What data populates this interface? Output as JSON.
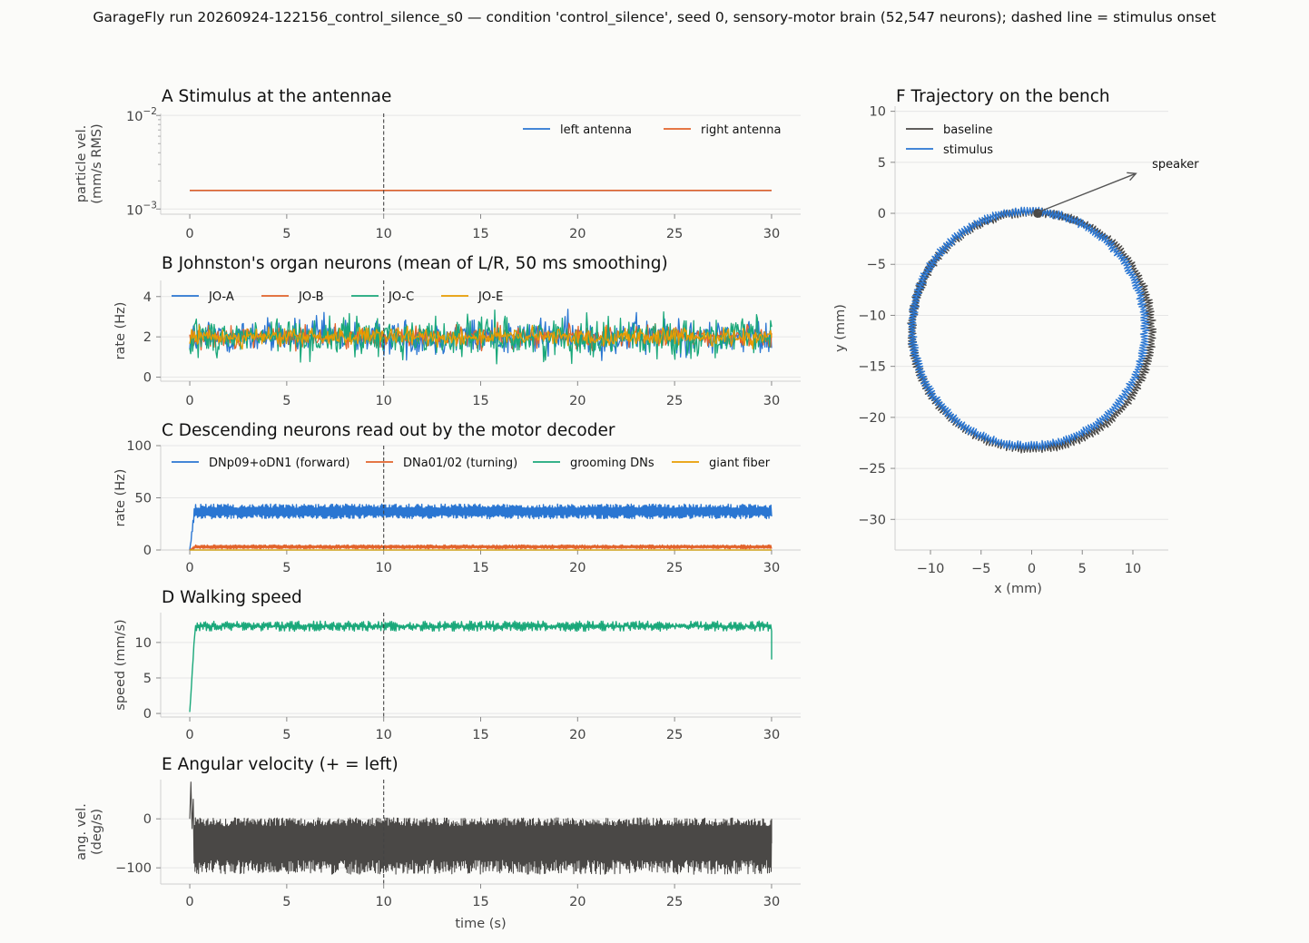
{
  "suptitle": "GarageFly run 20260924-122156_control_silence_s0 — condition 'control_silence', seed 0, sensory-motor brain (52,547 neurons); dashed line = stimulus onset",
  "colors": {
    "blue": "#2a76d2",
    "orange": "#e2632b",
    "green": "#1aa87a",
    "gold": "#e89c00",
    "dark": "#4a4846",
    "grid": "#e6e6e6",
    "axis": "#cfcfcf",
    "background": "#fbfbf9"
  },
  "chart_data": [
    {
      "id": "A",
      "type": "line",
      "title": "A  Stimulus at the antennae",
      "ylabel": [
        "particle vel.",
        "(mm/s RMS)"
      ],
      "xlabel": "",
      "yscale": "log",
      "ylim": [
        0.00088,
        0.0105
      ],
      "xlim": [
        -1.5,
        31.5
      ],
      "xticks": [
        0,
        5,
        10,
        15,
        20,
        25,
        30
      ],
      "yticks_log": [
        {
          "value": 0.001,
          "base": "10",
          "exp": "−3"
        },
        {
          "value": 0.01,
          "base": "10",
          "exp": "−2"
        }
      ],
      "stimulus_onset": 10,
      "legend_position": "top-right",
      "legend_layout": "row",
      "series": [
        {
          "name": "left antenna",
          "color": "#2a76d2",
          "x": [
            0,
            30
          ],
          "y": [
            0.00158,
            0.00158
          ]
        },
        {
          "name": "right antenna",
          "color": "#e2632b",
          "x": [
            0,
            30
          ],
          "y": [
            0.00158,
            0.00158
          ]
        }
      ]
    },
    {
      "id": "B",
      "type": "line",
      "title": "B  Johnston's organ neurons (mean of L/R, 50 ms smoothing)",
      "ylabel": [
        "rate (Hz)"
      ],
      "xlabel": "",
      "ylim": [
        -0.2,
        4.8
      ],
      "xlim": [
        -1.5,
        31.5
      ],
      "xticks": [
        0,
        5,
        10,
        15,
        20,
        25,
        30
      ],
      "yticks": [
        0,
        2,
        4
      ],
      "stimulus_onset": 10,
      "legend_position": "top-left",
      "legend_layout": "row",
      "series": [
        {
          "name": "JO-A",
          "color": "#2a76d2",
          "summary": {
            "mean": 2.0,
            "amp": 0.75,
            "min": 0.0,
            "max": 4.6
          }
        },
        {
          "name": "JO-B",
          "color": "#e2632b",
          "summary": {
            "mean": 2.0,
            "amp": 0.45,
            "min": 0.9,
            "max": 3.4
          }
        },
        {
          "name": "JO-C",
          "color": "#1aa87a",
          "summary": {
            "mean": 2.0,
            "amp": 0.8,
            "min": 0.3,
            "max": 4.4
          }
        },
        {
          "name": "JO-E",
          "color": "#e89c00",
          "summary": {
            "mean": 2.0,
            "amp": 0.35,
            "min": 1.0,
            "max": 3.0
          }
        }
      ]
    },
    {
      "id": "C",
      "type": "line",
      "title": "C  Descending neurons read out by the motor decoder",
      "ylabel": [
        "rate (Hz)"
      ],
      "xlabel": "",
      "ylim": [
        0,
        100
      ],
      "xlim": [
        -1.5,
        31.5
      ],
      "xticks": [
        0,
        5,
        10,
        15,
        20,
        25,
        30
      ],
      "yticks": [
        0,
        50,
        100
      ],
      "stimulus_onset": 10,
      "legend_position": "top-left",
      "legend_layout": "row",
      "series": [
        {
          "name": "DNp09+oDN1 (forward)",
          "color": "#2a76d2",
          "summary": {
            "plateau": 37,
            "band": [
              31,
              45
            ],
            "onset_start": 0
          }
        },
        {
          "name": "DNa01/02 (turning)",
          "color": "#e2632b",
          "summary": {
            "plateau": 3,
            "band": [
              1,
              5
            ]
          }
        },
        {
          "name": "grooming DNs",
          "color": "#1aa87a",
          "summary": {
            "plateau": 0
          }
        },
        {
          "name": "giant fiber",
          "color": "#e89c00",
          "summary": {
            "plateau": 0
          }
        }
      ]
    },
    {
      "id": "D",
      "type": "line",
      "title": "D  Walking speed",
      "ylabel": [
        "speed (mm/s)"
      ],
      "xlabel": "",
      "ylim": [
        -0.5,
        14.2
      ],
      "xlim": [
        -1.5,
        31.5
      ],
      "xticks": [
        0,
        5,
        10,
        15,
        20,
        25,
        30
      ],
      "yticks": [
        0,
        5,
        10
      ],
      "stimulus_onset": 10,
      "series": [
        {
          "name": "",
          "color": "#1aa87a",
          "summary": {
            "start": 0.2,
            "plateau": 12.3,
            "band": [
              11.2,
              13.8
            ],
            "end": 7.6
          }
        }
      ]
    },
    {
      "id": "E",
      "type": "line",
      "title": "E  Angular velocity (+ = left)",
      "ylabel": [
        "ang. vel.",
        "(deg/s)"
      ],
      "xlabel": "time (s)",
      "ylim": [
        -133,
        80
      ],
      "xlim": [
        -1.5,
        31.5
      ],
      "xticks": [
        0,
        5,
        10,
        15,
        20,
        25,
        30
      ],
      "yticks": [
        0,
        -100
      ],
      "stimulus_onset": 10,
      "series": [
        {
          "name": "",
          "color": "#4a4846",
          "summary": {
            "mean": -45,
            "band": [
              -125,
              10
            ],
            "initial_spike": 75
          }
        }
      ]
    },
    {
      "id": "F",
      "type": "line",
      "title": "F  Trajectory on the bench",
      "ylabel": [
        "y (mm)"
      ],
      "xlabel": "x (mm)",
      "xlim": [
        -13.5,
        13.5
      ],
      "ylim": [
        -33,
        10.5
      ],
      "xticks": [
        -10,
        -5,
        0,
        5,
        10
      ],
      "yticks": [
        10,
        5,
        0,
        -5,
        -10,
        -15,
        -20,
        -25,
        -30
      ],
      "legend_position": "top-left",
      "legend_layout": "column",
      "start_point": [
        0.6,
        0.0
      ],
      "annotation": {
        "text": "speaker",
        "arrow_from": [
          0.6,
          0.1
        ],
        "arrow_to": [
          10.3,
          3.9
        ],
        "text_at": [
          11.9,
          4.8
        ]
      },
      "series": [
        {
          "name": "baseline",
          "color": "#4a4846",
          "summary": {
            "center": [
              0.0,
              -11.5
            ],
            "radius": 11.6,
            "ripple": 0.45
          }
        },
        {
          "name": "stimulus",
          "color": "#2a76d2",
          "summary": {
            "center": [
              -0.3,
              -11.3
            ],
            "radius": 11.5,
            "ripple": 0.45
          }
        }
      ]
    }
  ]
}
